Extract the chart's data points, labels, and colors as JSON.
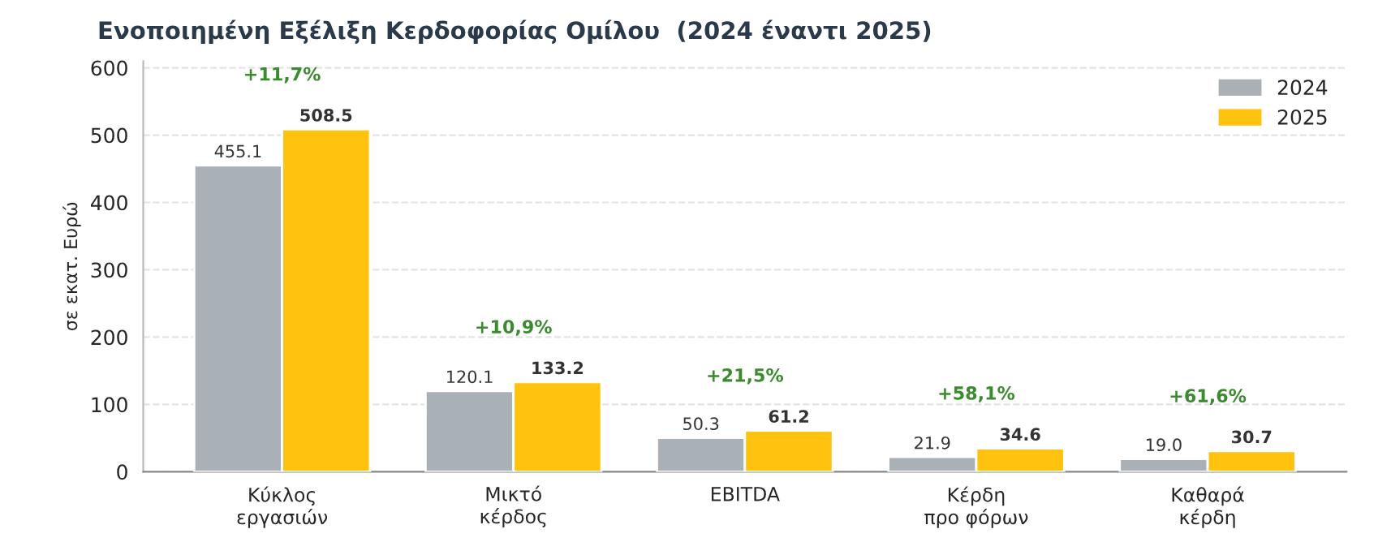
{
  "chart_data": {
    "type": "bar",
    "title": "Ενοποιημένη Εξέλιξη Κερδοφορίας Ομίλου  (2024 έναντι 2025)",
    "ylabel": "σε εκατ. Ευρώ",
    "categories": [
      "Κύκλος\nεργασιών",
      "Μικτό\nκέρδος",
      "EBITDA",
      "Κέρδη\nπρο φόρων",
      "Καθαρά\nκέρδη"
    ],
    "series": [
      {
        "name": "2024",
        "color": "#a9b1b7",
        "values": [
          455.1,
          120.1,
          50.3,
          21.9,
          19.0
        ],
        "value_labels": [
          "455.1",
          "120.1",
          "50.3",
          "21.9",
          "19.0"
        ]
      },
      {
        "name": "2025",
        "color": "#ffc20e",
        "values": [
          508.5,
          133.2,
          61.2,
          34.6,
          30.7
        ],
        "value_labels": [
          "508.5",
          "133.2",
          "61.2",
          "34.6",
          "30.7"
        ]
      }
    ],
    "annotations": [
      "+11,7%",
      "+10,9%",
      "+21,5%",
      "+58,1%",
      "+61,6%"
    ],
    "ylim": [
      0,
      610
    ],
    "yticks": [
      0,
      100,
      200,
      300,
      400,
      500,
      600
    ],
    "grid": "y",
    "legend": "top right"
  }
}
